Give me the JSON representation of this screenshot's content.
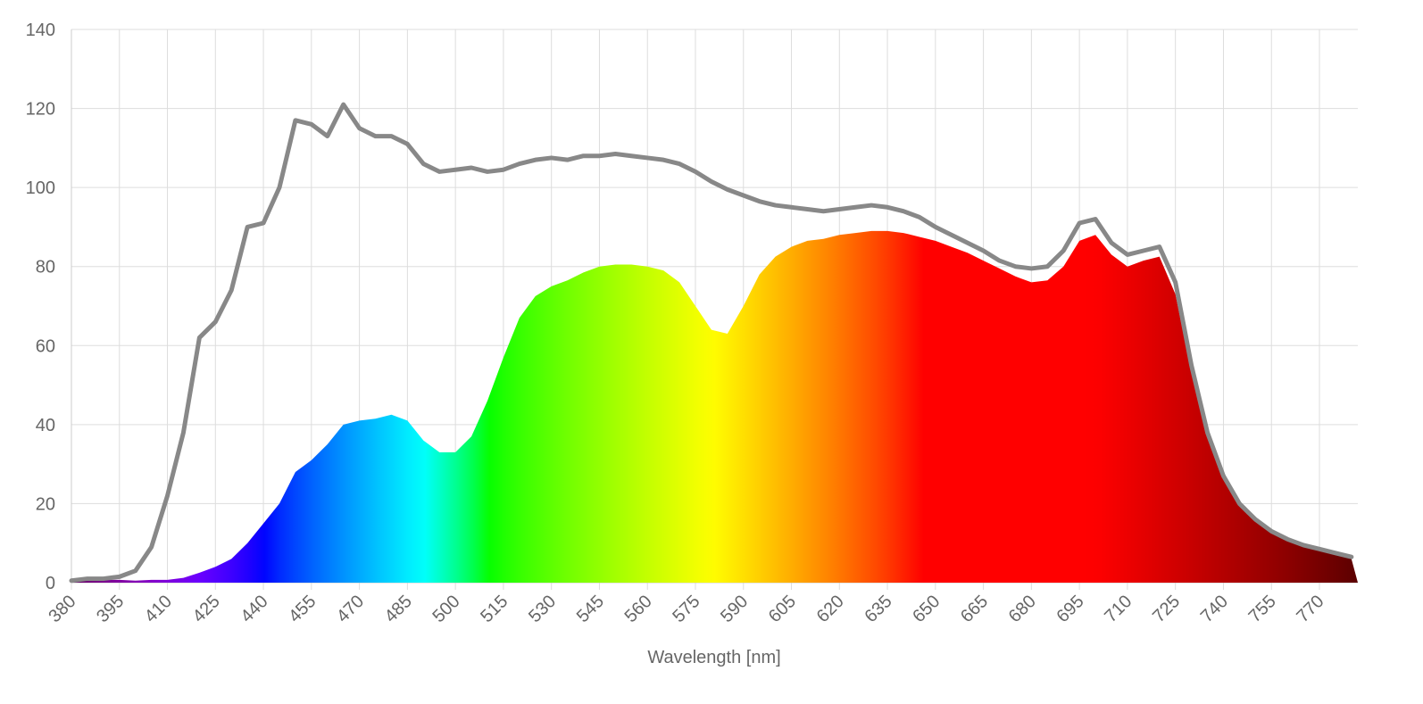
{
  "chart_data": {
    "type": "line",
    "xlabel": "Wavelength [nm]",
    "x": [
      380,
      385,
      390,
      395,
      400,
      405,
      410,
      415,
      420,
      425,
      430,
      435,
      440,
      445,
      450,
      455,
      460,
      465,
      470,
      475,
      480,
      485,
      490,
      495,
      500,
      505,
      510,
      515,
      520,
      525,
      530,
      535,
      540,
      545,
      550,
      555,
      560,
      565,
      570,
      575,
      580,
      585,
      590,
      595,
      600,
      605,
      610,
      615,
      620,
      625,
      630,
      635,
      640,
      645,
      650,
      655,
      660,
      665,
      670,
      675,
      680,
      685,
      690,
      695,
      700,
      705,
      710,
      715,
      720,
      725,
      730,
      735,
      740,
      745,
      750,
      755,
      760,
      765,
      770,
      775,
      780
    ],
    "series": [
      {
        "type": "area",
        "color": "spectrum",
        "values": [
          0.3,
          0.5,
          0.7,
          0.7,
          0.5,
          0.7,
          0.7,
          1.2,
          2.5,
          4,
          6,
          10,
          15,
          20,
          28,
          31,
          35,
          40,
          41,
          41.5,
          42.5,
          41,
          36,
          33,
          33,
          37,
          46,
          57,
          67,
          72.5,
          75,
          76.5,
          78.5,
          80,
          80.5,
          80.5,
          80,
          79,
          76,
          70,
          64,
          63,
          70,
          78,
          82.5,
          85,
          86.5,
          87,
          88,
          88.5,
          89,
          89,
          88.5,
          87.5,
          86.5,
          85,
          83.5,
          81.5,
          79.5,
          77.5,
          76,
          76.5,
          80,
          86.5,
          88,
          83,
          80,
          81.5,
          82.5,
          73,
          53,
          37,
          26,
          19.5,
          15.5,
          12.5,
          10.5,
          9,
          8,
          7,
          6
        ]
      },
      {
        "type": "line",
        "color": "#888888",
        "values": [
          0.5,
          1,
          1,
          1.5,
          3,
          9,
          22,
          38,
          62,
          66,
          74,
          90,
          91,
          100,
          117,
          116,
          113,
          121,
          115,
          113,
          113,
          111,
          106,
          104,
          104.5,
          105,
          104,
          104.5,
          106,
          107,
          107.5,
          107,
          108,
          108,
          108.5,
          108,
          107.5,
          107,
          106,
          104,
          101.5,
          99.5,
          98,
          96.5,
          95.5,
          95,
          94.5,
          94,
          94.5,
          95,
          95.5,
          95,
          94,
          92.5,
          90,
          88,
          86,
          84,
          81.5,
          80,
          79.5,
          80,
          84,
          91,
          92,
          86,
          83,
          84,
          85,
          76,
          55,
          38,
          27,
          20,
          16,
          13,
          11,
          9.5,
          8.5,
          7.5,
          6.5
        ]
      }
    ],
    "xlim": [
      380,
      782
    ],
    "xticks": [
      380,
      395,
      410,
      425,
      440,
      455,
      470,
      485,
      500,
      515,
      530,
      545,
      560,
      575,
      590,
      605,
      620,
      635,
      650,
      665,
      680,
      695,
      710,
      725,
      740,
      755,
      770
    ],
    "ylim": [
      0,
      140
    ],
    "yticks": [
      0,
      20,
      40,
      60,
      80,
      100,
      120,
      140
    ],
    "grid": true
  }
}
